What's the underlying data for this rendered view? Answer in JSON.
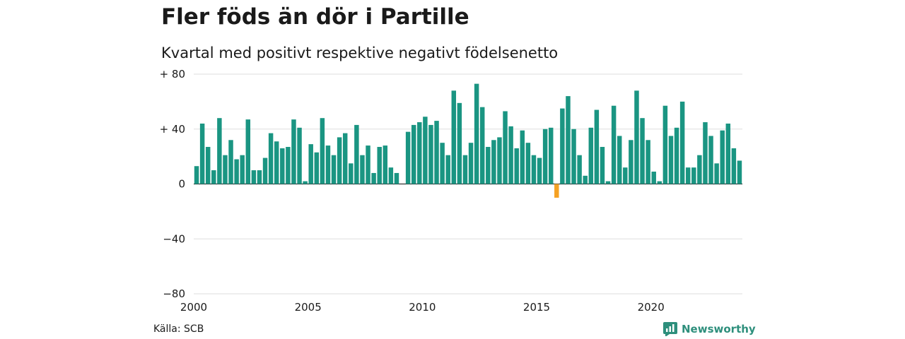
{
  "title": "Fler föds än dör i Partille",
  "subtitle": "Kvartal med positivt respektive negativt födelsenetto",
  "source": "Källa: SCB",
  "brand": {
    "name": "Newsworthy",
    "icon": "newsworthy-logo-icon"
  },
  "colors": {
    "positive": "#1a9582",
    "negative": "#f5a123",
    "grid": "#dddddd",
    "axis": "#333333",
    "brand": "#2e8f7c"
  },
  "chart_data": {
    "type": "bar",
    "title": "Fler föds än dör i Partille",
    "subtitle": "Kvartal med positivt respektive negativt födelsenetto",
    "xlabel": "",
    "ylabel": "",
    "ylim": [
      -80,
      80
    ],
    "xlim": [
      2000,
      2024
    ],
    "y_ticks": [
      80,
      40,
      0,
      -40,
      -80
    ],
    "y_tick_labels": [
      "+ 80",
      "+ 40",
      "0",
      "−40",
      "−80"
    ],
    "x_ticks": [
      2000,
      2005,
      2010,
      2015,
      2020
    ],
    "x_tick_labels": [
      "2000",
      "2005",
      "2010",
      "2015",
      "2020"
    ],
    "grid": true,
    "start_period": "2000 Q1",
    "values": [
      13,
      44,
      27,
      10,
      48,
      21,
      32,
      18,
      21,
      47,
      10,
      10,
      19,
      37,
      31,
      26,
      27,
      47,
      41,
      2,
      29,
      23,
      48,
      28,
      21,
      34,
      37,
      15,
      43,
      21,
      28,
      8,
      27,
      28,
      12,
      8,
      0,
      38,
      43,
      45,
      49,
      43,
      46,
      30,
      21,
      68,
      59,
      21,
      30,
      73,
      56,
      27,
      32,
      34,
      53,
      42,
      26,
      39,
      30,
      21,
      19,
      40,
      41,
      -10,
      55,
      64,
      40,
      21,
      6,
      41,
      54,
      27,
      2,
      57,
      35,
      12,
      32,
      68,
      48,
      32,
      9,
      2,
      57,
      35,
      41,
      60,
      12,
      12,
      21,
      45,
      35,
      15,
      39,
      44,
      26,
      17
    ]
  }
}
